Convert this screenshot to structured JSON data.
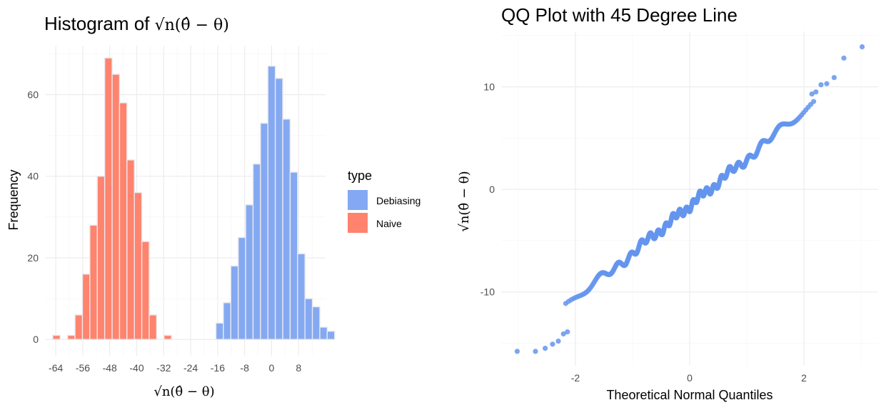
{
  "chart_data": [
    {
      "type": "bar",
      "subtype": "histogram",
      "title": "Histogram of √n(θ̂ − θ)",
      "xlabel": "√n(θ̂ − θ)",
      "ylabel": "Frequency",
      "xlim": [
        -67,
        16
      ],
      "ylim": [
        -4,
        72
      ],
      "xticks": [
        -64,
        -56,
        -48,
        -40,
        -32,
        -24,
        -16,
        -8,
        0,
        8
      ],
      "xtick_labels": [
        "-64",
        "-56",
        "-48",
        "-40",
        "-32",
        "-24",
        "-16",
        "-8",
        "0",
        "8"
      ],
      "yticks": [
        0,
        20,
        40,
        60
      ],
      "ytick_labels": [
        "0",
        "20",
        "40",
        "60"
      ],
      "bin_width": 2.2,
      "legend": {
        "title": "type",
        "position": "right",
        "entries": [
          {
            "label": "Debiasing",
            "color": "#84A9F2"
          },
          {
            "label": "Naive",
            "color": "#FF836D"
          }
        ]
      },
      "grid": true,
      "series": [
        {
          "name": "Naive",
          "color": "#FF836D",
          "bins": [
            {
              "x": -63.8,
              "count": 1
            },
            {
              "x": -59.4,
              "count": 1
            },
            {
              "x": -57.2,
              "count": 6
            },
            {
              "x": -55.0,
              "count": 16
            },
            {
              "x": -52.8,
              "count": 28
            },
            {
              "x": -50.6,
              "count": 40
            },
            {
              "x": -48.4,
              "count": 69
            },
            {
              "x": -46.2,
              "count": 65
            },
            {
              "x": -44.0,
              "count": 58
            },
            {
              "x": -41.8,
              "count": 44
            },
            {
              "x": -39.6,
              "count": 36
            },
            {
              "x": -37.4,
              "count": 24
            },
            {
              "x": -35.2,
              "count": 6
            },
            {
              "x": -30.8,
              "count": 1
            }
          ]
        },
        {
          "name": "Debiasing",
          "color": "#84A9F2",
          "bins": [
            {
              "x": -15.4,
              "count": 4
            },
            {
              "x": -13.2,
              "count": 9
            },
            {
              "x": -11.0,
              "count": 18
            },
            {
              "x": -8.8,
              "count": 25
            },
            {
              "x": -6.6,
              "count": 33
            },
            {
              "x": -4.4,
              "count": 43
            },
            {
              "x": -2.2,
              "count": 53
            },
            {
              "x": 0.0,
              "count": 67
            },
            {
              "x": 2.2,
              "count": 64
            },
            {
              "x": 4.4,
              "count": 54
            },
            {
              "x": 6.6,
              "count": 41
            },
            {
              "x": 8.8,
              "count": 21
            },
            {
              "x": 11.0,
              "count": 10
            },
            {
              "x": 13.2,
              "count": 8
            },
            {
              "x": 15.4,
              "count": 3
            },
            {
              "x": 17.6,
              "count": 2
            }
          ]
        }
      ]
    },
    {
      "type": "scatter",
      "title": "QQ Plot with 45 Degree Line",
      "xlabel": "Theoretical Normal Quantiles",
      "ylabel": "√n(θ̂ − θ)",
      "xlim": [
        -3.3,
        3.3
      ],
      "ylim": [
        -17.2,
        15.4
      ],
      "xticks": [
        -2,
        0,
        2
      ],
      "xtick_labels": [
        "-2",
        "0",
        "2"
      ],
      "yticks": [
        -10,
        0,
        10
      ],
      "ytick_labels": [
        "-10",
        "0",
        "10"
      ],
      "grid": true,
      "point_color": "#6495ED",
      "n_points": 500,
      "distribution_sd": 4.6,
      "distribution_mean": -1.6,
      "tail_points": [
        {
          "x": -3.02,
          "y": -15.8
        },
        {
          "x": -2.7,
          "y": -15.8
        },
        {
          "x": -2.53,
          "y": -15.5
        },
        {
          "x": -2.4,
          "y": -15.1
        },
        {
          "x": -2.3,
          "y": -14.8
        },
        {
          "x": -2.21,
          "y": -14.1
        },
        {
          "x": -2.14,
          "y": -13.9
        },
        {
          "x": 2.14,
          "y": 9.3
        },
        {
          "x": 2.21,
          "y": 9.5
        },
        {
          "x": 2.3,
          "y": 10.2
        },
        {
          "x": 2.4,
          "y": 10.3
        },
        {
          "x": 2.53,
          "y": 10.9
        },
        {
          "x": 2.7,
          "y": 12.8
        },
        {
          "x": 3.02,
          "y": 13.9
        }
      ]
    }
  ]
}
